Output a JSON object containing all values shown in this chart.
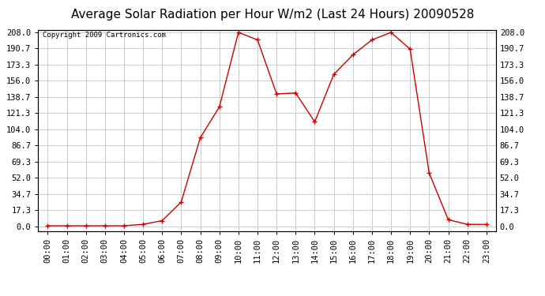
{
  "title": "Average Solar Radiation per Hour W/m2 (Last 24 Hours) 20090528",
  "copyright": "Copyright 2009 Cartronics.com",
  "hours": [
    "00:00",
    "01:00",
    "02:00",
    "03:00",
    "04:00",
    "05:00",
    "06:00",
    "07:00",
    "08:00",
    "09:00",
    "10:00",
    "11:00",
    "12:00",
    "13:00",
    "14:00",
    "15:00",
    "16:00",
    "17:00",
    "18:00",
    "19:00",
    "20:00",
    "21:00",
    "22:00",
    "23:00"
  ],
  "values": [
    0.5,
    0.5,
    0.5,
    0.5,
    0.5,
    2.0,
    6.0,
    26.0,
    95.0,
    128.0,
    208.0,
    200.0,
    142.0,
    143.0,
    112.0,
    163.0,
    184.0,
    200.0,
    208.0,
    190.0,
    57.0,
    7.0,
    2.0,
    2.0
  ],
  "yticks": [
    0.0,
    17.3,
    34.7,
    52.0,
    69.3,
    86.7,
    104.0,
    121.3,
    138.7,
    156.0,
    173.3,
    190.7,
    208.0
  ],
  "line_color": "#cc0000",
  "marker_color": "#cc0000",
  "bg_color": "#ffffff",
  "grid_color": "#cccccc",
  "title_fontsize": 11,
  "copyright_fontsize": 6.5,
  "tick_fontsize": 7.5,
  "ymin": 0.0,
  "ymax": 208.0
}
